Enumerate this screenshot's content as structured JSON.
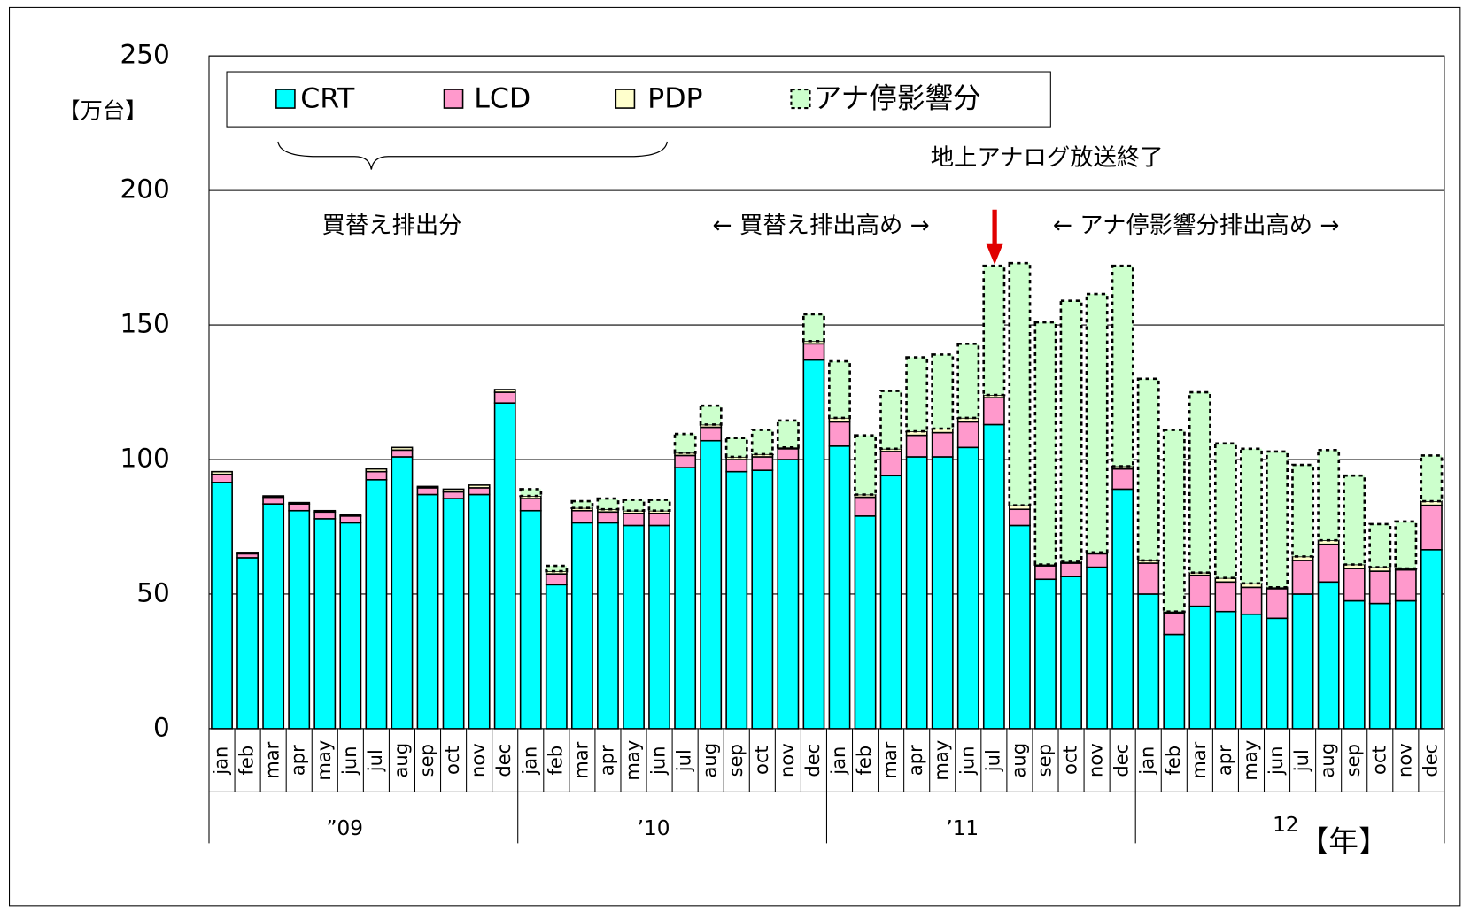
{
  "chart_data": {
    "type": "stacked_bar",
    "y_unit": "【万台】",
    "x_unit": "【年】",
    "categories": [
      "jan",
      "feb",
      "mar",
      "apr",
      "may",
      "jun",
      "jul",
      "aug",
      "sep",
      "oct",
      "nov",
      "dec",
      "jan",
      "feb",
      "mar",
      "apr",
      "may",
      "jun",
      "jul",
      "aug",
      "sep",
      "oct",
      "nov",
      "dec",
      "jan",
      "feb",
      "mar",
      "apr",
      "may",
      "jun",
      "jul",
      "aug",
      "sep",
      "oct",
      "nov",
      "dec",
      "jan",
      "feb",
      "mar",
      "apr",
      "may",
      "jun",
      "jul",
      "aug",
      "sep",
      "oct",
      "nov",
      "dec"
    ],
    "year_labels": [
      "”09",
      "’10",
      "’11",
      "12"
    ],
    "series": [
      {
        "name": "CRT",
        "color": "#00ffff",
        "values": [
          91.5,
          63.5,
          83.5,
          81,
          78,
          76.5,
          92.5,
          101,
          87,
          85.5,
          87,
          121,
          81,
          53.5,
          76.5,
          76.5,
          75.5,
          75.5,
          97,
          107,
          95.5,
          96,
          100,
          137,
          105,
          79,
          94,
          101,
          101,
          104.5,
          113,
          75.5,
          55.5,
          56.5,
          60,
          89,
          50,
          35,
          45.5,
          43.5,
          42.5,
          41,
          50,
          54.5,
          47.5,
          46.5,
          47.5,
          66.5
        ]
      },
      {
        "name": "LCD",
        "color": "#ff99cc",
        "values": [
          3,
          1.5,
          2.5,
          2.5,
          2.5,
          2.5,
          3,
          2.5,
          2.5,
          2.5,
          2.5,
          4,
          4.5,
          4,
          4.5,
          4,
          4.5,
          4.5,
          4.5,
          5,
          4.5,
          5,
          4,
          6,
          9,
          7,
          9,
          8,
          9,
          9.5,
          10,
          6,
          5,
          5,
          5,
          7.5,
          11.5,
          8,
          11.5,
          11,
          10,
          11,
          12.5,
          14,
          12,
          12,
          11.5,
          16.5
        ]
      },
      {
        "name": "PDP",
        "color": "#ffffcc",
        "values": [
          1,
          0.5,
          0.5,
          0.5,
          0.5,
          0.5,
          1,
          1,
          0.5,
          1,
          1,
          1,
          1,
          1,
          1,
          1,
          1,
          1,
          1,
          1,
          1,
          1,
          0.5,
          1,
          1.5,
          1,
          1,
          1.5,
          1.5,
          1.5,
          1,
          1.5,
          0.5,
          0.5,
          0.5,
          1,
          1,
          0.5,
          1,
          1.5,
          1.5,
          0.5,
          1.5,
          1.5,
          1.5,
          1.5,
          0.5,
          1.5
        ]
      },
      {
        "name": "アナ停影響分",
        "color": "#ccffcc",
        "dashed": true,
        "values": [
          0,
          0,
          0,
          0,
          0,
          0,
          0,
          0,
          0,
          0,
          0,
          0,
          2.5,
          2,
          2.5,
          4,
          4,
          4,
          7,
          7,
          7,
          9,
          10,
          10,
          21,
          22,
          21.5,
          27.5,
          27.5,
          27.5,
          48,
          90,
          90,
          97,
          96,
          74.5,
          67.5,
          67.5,
          67,
          50,
          50,
          50.5,
          34,
          33.5,
          33,
          16,
          17.5,
          17
        ]
      }
    ],
    "ylim": [
      0,
      250
    ],
    "yticks": [
      0,
      50,
      100,
      150,
      200,
      250
    ],
    "grid": true,
    "annotations": [
      "地上アナログ放送終了",
      "買替え排出分",
      "← 買替え排出高め →",
      "← アナ停影響分排出高め →"
    ]
  }
}
